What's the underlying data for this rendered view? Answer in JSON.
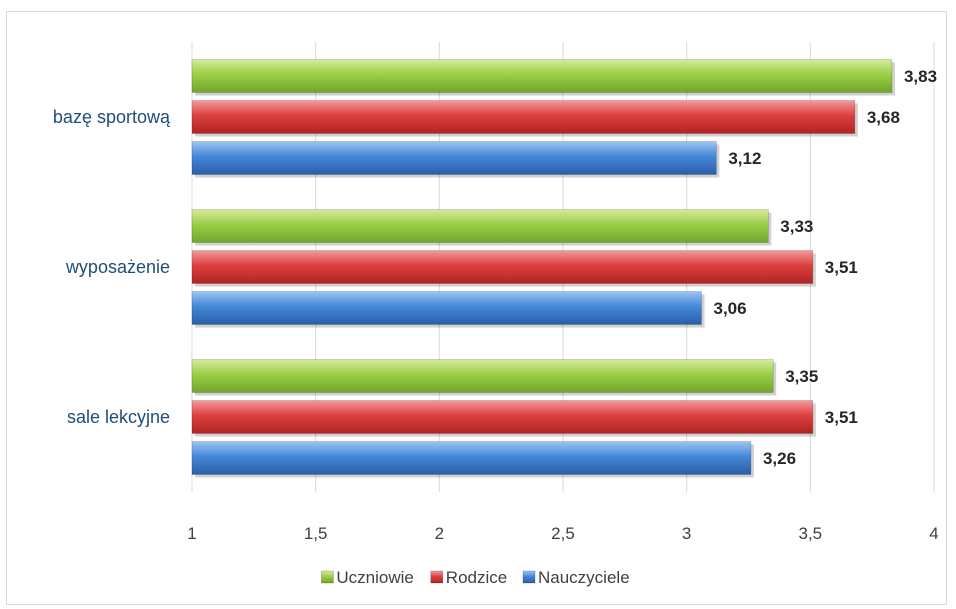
{
  "chart_data": {
    "type": "bar",
    "orientation": "horizontal",
    "categories": [
      "bazę sportową",
      "wyposażenie",
      "sale lekcyjne"
    ],
    "series": [
      {
        "name": "Uczniowie",
        "values": [
          3.83,
          3.33,
          3.35
        ],
        "color": "#8cc63f"
      },
      {
        "name": "Rodzice",
        "values": [
          3.68,
          3.51,
          3.51
        ],
        "color": "#d63c3c"
      },
      {
        "name": "Nauczyciele",
        "values": [
          3.12,
          3.06,
          3.26
        ],
        "color": "#3f7fd4"
      }
    ],
    "data_labels": [
      [
        "3,83",
        "3,33",
        "3,35"
      ],
      [
        "3,68",
        "3,51",
        "3,51"
      ],
      [
        "3,12",
        "3,06",
        "3,26"
      ]
    ],
    "xlim": [
      1,
      4
    ],
    "x_ticks": [
      1,
      1.5,
      2,
      2.5,
      3,
      3.5,
      4
    ],
    "x_tick_labels": [
      "1",
      "1,5",
      "2",
      "2,5",
      "3",
      "3,5",
      "4"
    ],
    "grid": true,
    "legend_position": "bottom"
  }
}
